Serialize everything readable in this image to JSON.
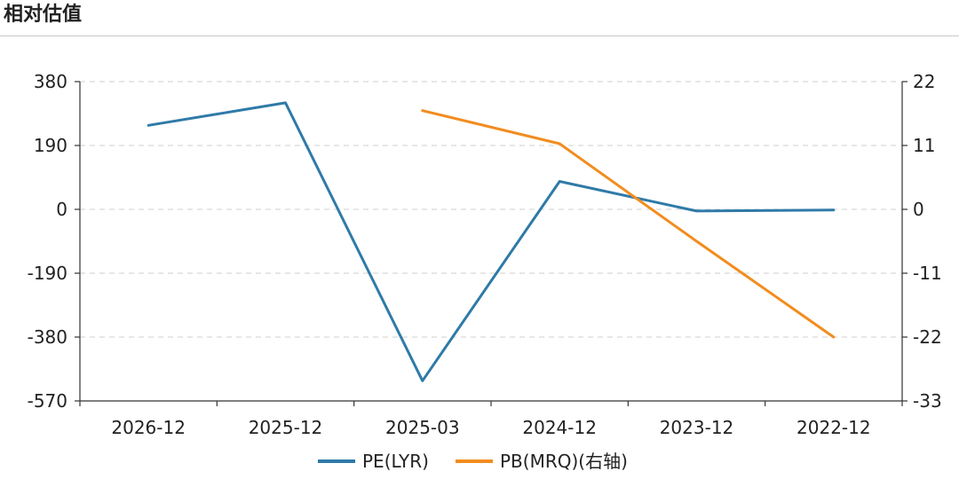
{
  "header": {
    "title": "相对估值"
  },
  "chart_data": {
    "type": "line",
    "categories": [
      "2026-12",
      "2025-12",
      "2025-03",
      "2024-12",
      "2023-12",
      "2022-12"
    ],
    "series": [
      {
        "name": "PE(LYR)",
        "axis": "left",
        "color": "#2f7aa8",
        "values": [
          250,
          317,
          -510,
          83,
          -5,
          -2
        ]
      },
      {
        "name": "PB(MRQ)(右轴)",
        "axis": "right",
        "color": "#f28c1e",
        "values": [
          null,
          null,
          17,
          11.3,
          -5.5,
          -22
        ]
      }
    ],
    "y_left": {
      "ticks": [
        380,
        190,
        0,
        -190,
        -380,
        -570
      ],
      "ylim": [
        -570,
        380
      ]
    },
    "y_right": {
      "ticks": [
        22,
        11,
        0,
        -11,
        -22,
        -33
      ],
      "ylim": [
        -33,
        22
      ]
    },
    "grid": true,
    "legend": "bottom-center"
  }
}
